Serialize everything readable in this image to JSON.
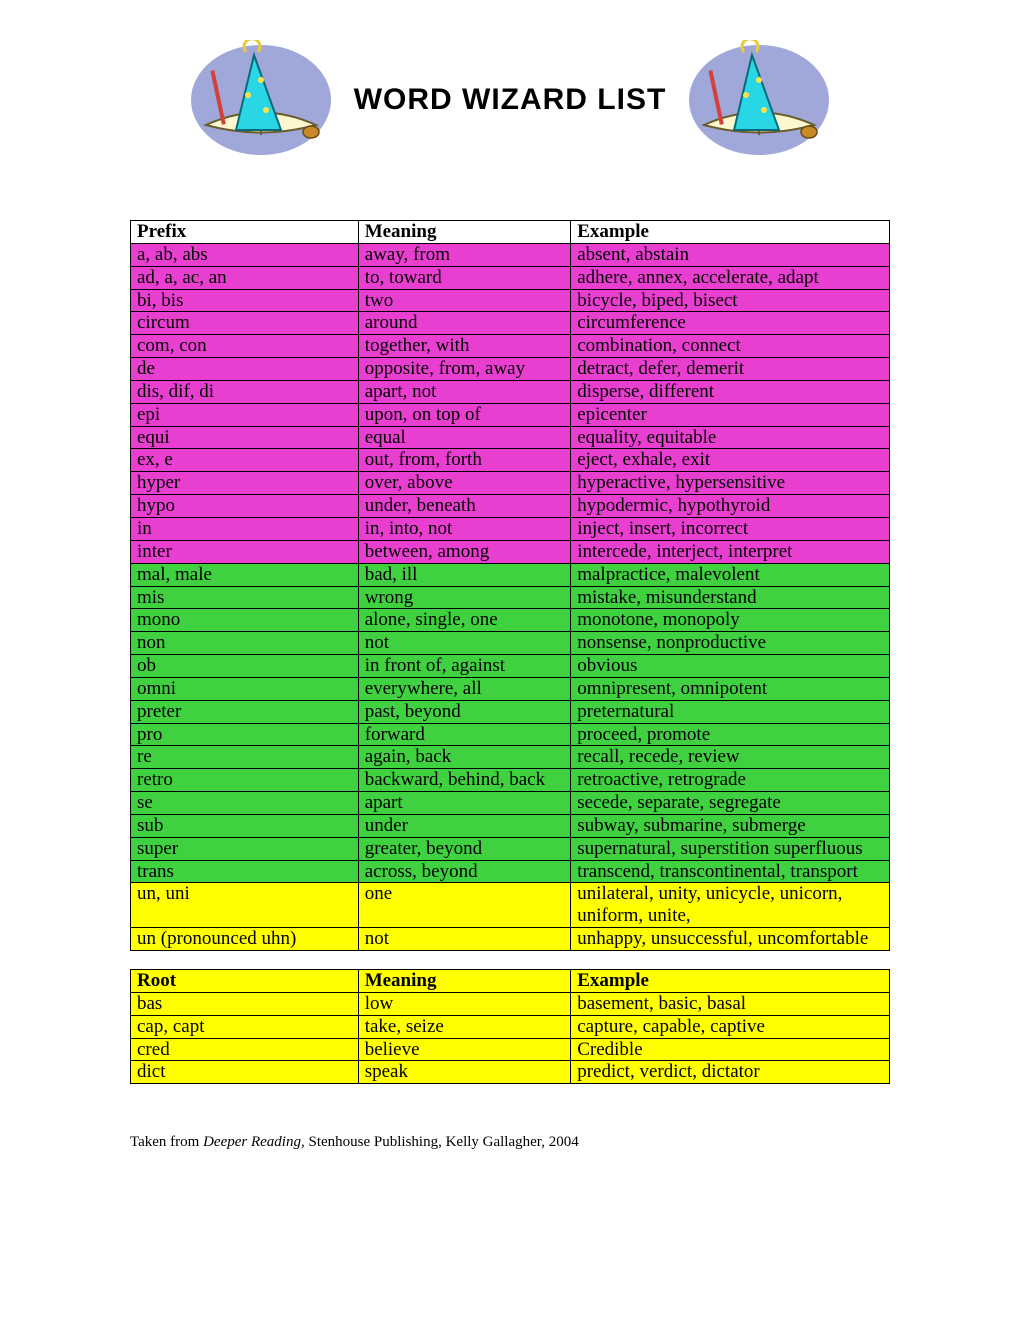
{
  "title": "WORD WIZARD LIST",
  "colors": {
    "pink": "#e83fd0",
    "green": "#3fd13f",
    "yellow": "#ffff00",
    "white": "#ffffff",
    "border": "#000000"
  },
  "prefix_table": {
    "headers": {
      "c1": "Prefix",
      "c2": "Meaning",
      "c3": "Example"
    },
    "rows": [
      {
        "c1": "a, ab, abs",
        "c2": "away, from",
        "c3": "absent, abstain",
        "color": "pink"
      },
      {
        "c1": "ad, a, ac, an",
        "c2": "to, toward",
        "c3": "adhere, annex, accelerate, adapt",
        "color": "pink"
      },
      {
        "c1": "bi, bis",
        "c2": "two",
        "c3": "bicycle, biped, bisect",
        "color": "pink"
      },
      {
        "c1": "circum",
        "c2": "around",
        "c3": "circumference",
        "color": "pink"
      },
      {
        "c1": "com, con",
        "c2": "together, with",
        "c3": "combination, connect",
        "color": "pink"
      },
      {
        "c1": "de",
        "c2": "opposite, from, away",
        "c3": "detract, defer, demerit",
        "color": "pink"
      },
      {
        "c1": "dis, dif, di",
        "c2": "apart, not",
        "c3": "disperse, different",
        "color": "pink"
      },
      {
        "c1": "epi",
        "c2": "upon, on top of",
        "c3": "epicenter",
        "color": "pink"
      },
      {
        "c1": "equi",
        "c2": "equal",
        "c3": "equality, equitable",
        "color": "pink"
      },
      {
        "c1": "ex, e",
        "c2": "out, from, forth",
        "c3": "eject, exhale, exit",
        "color": "pink"
      },
      {
        "c1": "hyper",
        "c2": "over, above",
        "c3": "hyperactive, hypersensitive",
        "color": "pink"
      },
      {
        "c1": "hypo",
        "c2": "under, beneath",
        "c3": "hypodermic, hypothyroid",
        "color": "pink"
      },
      {
        "c1": "in",
        "c2": "in, into, not",
        "c3": "inject, insert, incorrect",
        "color": "pink"
      },
      {
        "c1": "inter",
        "c2": "between, among",
        "c3": "intercede, interject, interpret",
        "color": "pink"
      },
      {
        "c1": "mal, male",
        "c2": "bad, ill",
        "c3": "malpractice, malevolent",
        "color": "green"
      },
      {
        "c1": "mis",
        "c2": "wrong",
        "c3": "mistake, misunderstand",
        "color": "green"
      },
      {
        "c1": "mono",
        "c2": "alone, single, one",
        "c3": "monotone, monopoly",
        "color": "green"
      },
      {
        "c1": "non",
        "c2": "not",
        "c3": "nonsense, nonproductive",
        "color": "green"
      },
      {
        "c1": "ob",
        "c2": "in front of, against",
        "c3": "obvious",
        "color": "green"
      },
      {
        "c1": "omni",
        "c2": "everywhere, all",
        "c3": "omnipresent, omnipotent",
        "color": "green"
      },
      {
        "c1": "preter",
        "c2": "past, beyond",
        "c3": "preternatural",
        "color": "green"
      },
      {
        "c1": "pro",
        "c2": "forward",
        "c3": "proceed, promote",
        "color": "green"
      },
      {
        "c1": "re",
        "c2": "again, back",
        "c3": "recall, recede, review",
        "color": "green"
      },
      {
        "c1": "retro",
        "c2": "backward, behind, back",
        "c3": "retroactive, retrograde",
        "color": "green"
      },
      {
        "c1": "se",
        "c2": "apart",
        "c3": "secede, separate, segregate",
        "color": "green"
      },
      {
        "c1": "sub",
        "c2": "under",
        "c3": "subway, submarine, submerge",
        "color": "green"
      },
      {
        "c1": "super",
        "c2": "greater, beyond",
        "c3": "supernatural, superstition superfluous",
        "color": "green"
      },
      {
        "c1": "trans",
        "c2": "across, beyond",
        "c3": "transcend, transcontinental, transport",
        "color": "green"
      },
      {
        "c1": "un, uni",
        "c2": "one",
        "c3": "unilateral, unity, unicycle, unicorn, uniform, unite,",
        "color": "yellow"
      },
      {
        "c1": "un (pronounced uhn)",
        "c2": "not",
        "c3": "unhappy, unsuccessful, uncomfortable",
        "color": "yellow"
      }
    ]
  },
  "root_table": {
    "headers": {
      "c1": "Root",
      "c2": "Meaning",
      "c3": "Example"
    },
    "header_color": "yellow",
    "rows": [
      {
        "c1": "bas",
        "c2": "low",
        "c3": "basement, basic, basal",
        "color": "yellow"
      },
      {
        "c1": "cap, capt",
        "c2": "take, seize",
        "c3": "capture, capable, captive",
        "color": "yellow"
      },
      {
        "c1": "cred",
        "c2": "believe",
        "c3": "Credible",
        "color": "yellow"
      },
      {
        "c1": "dict",
        "c2": "speak",
        "c3": "predict, verdict, dictator",
        "color": "yellow"
      }
    ]
  },
  "source": {
    "prefix": "Taken from ",
    "book": "Deeper Reading",
    "rest": ", Stenhouse Publishing, Kelly Gallagher, 2004"
  }
}
